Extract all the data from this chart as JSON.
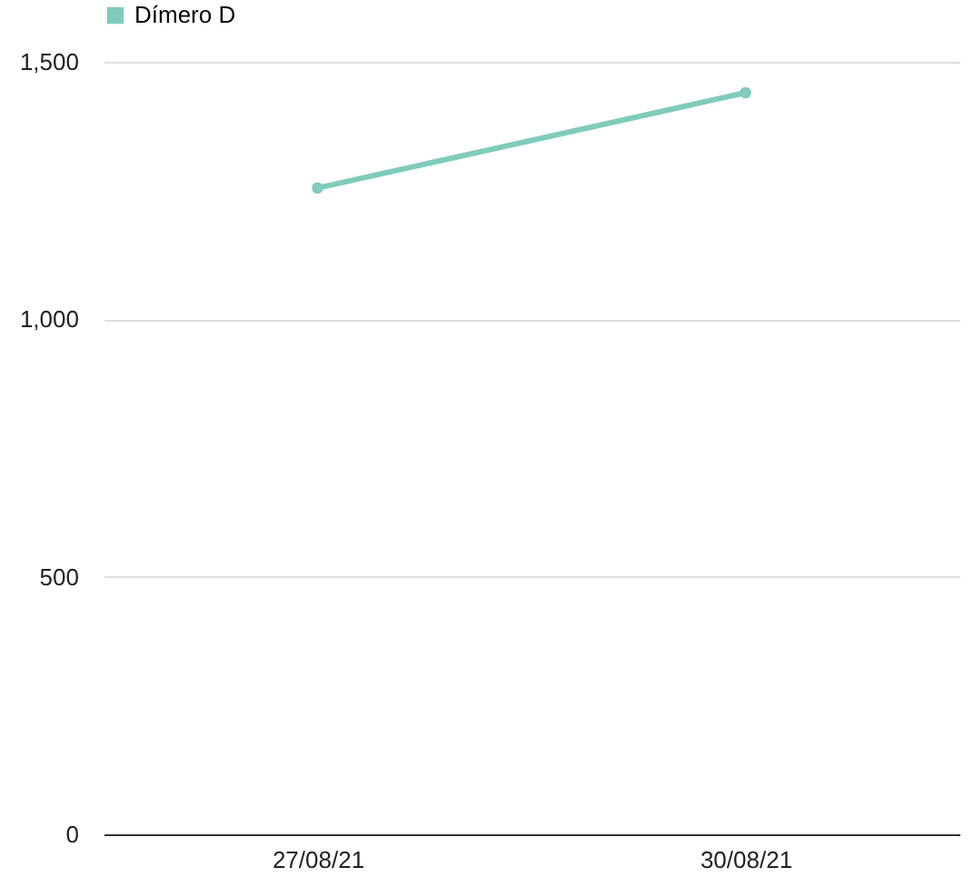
{
  "chart_data": {
    "type": "line",
    "categories": [
      "27/08/21",
      "30/08/21"
    ],
    "series": [
      {
        "name": "Dímero D",
        "color": "#80cbbb",
        "values": [
          1255,
          1440
        ]
      }
    ],
    "ylim": [
      0,
      1500
    ],
    "yticks": [
      0,
      {
        "value": 500,
        "label": "500"
      },
      {
        "value": 1000,
        "label": "1,000"
      },
      {
        "value": 1500,
        "label": "1,500"
      }
    ],
    "grid": "y",
    "legend": "top",
    "marker": "circle",
    "line_style": "solid"
  }
}
